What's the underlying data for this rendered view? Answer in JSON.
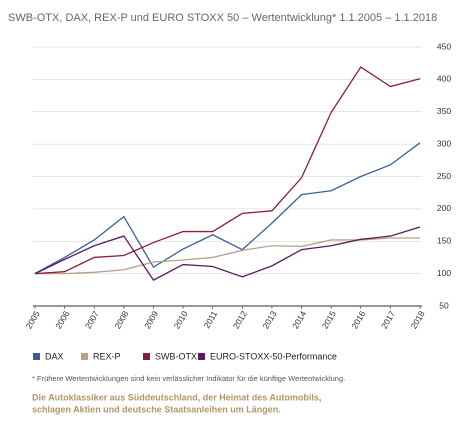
{
  "chart_data": {
    "type": "line",
    "title": "SWB-OTX, DAX, REX-P und EURO STOXX 50 – Wertentwicklung* 1.1.2005 – 1.1.2018",
    "categories": [
      "2005",
      "2006",
      "2007",
      "2008",
      "2009",
      "2010",
      "2011",
      "2012",
      "2013",
      "2014",
      "2015",
      "2016",
      "2017",
      "2018"
    ],
    "series": [
      {
        "name": "DAX",
        "color": "#3b5f9c",
        "values": [
          100,
          125,
          152,
          188,
          110,
          138,
          160,
          137,
          178,
          222,
          228,
          250,
          268,
          302
        ]
      },
      {
        "name": "REX-P",
        "color": "#b9a08a",
        "values": [
          100,
          100,
          102,
          106,
          118,
          121,
          125,
          136,
          143,
          142,
          152,
          152,
          155,
          155
        ]
      },
      {
        "name": "SWB-OTX",
        "color": "#8c1c3c",
        "values": [
          100,
          103,
          125,
          128,
          148,
          165,
          165,
          193,
          197,
          248,
          349,
          419,
          389,
          401
        ]
      },
      {
        "name": "EURO-STOXX-50-Performance",
        "color": "#5b1b5e",
        "values": [
          100,
          122,
          143,
          158,
          90,
          114,
          111,
          95,
          112,
          137,
          143,
          153,
          158,
          172
        ]
      }
    ],
    "ylim": [
      50,
      450
    ],
    "yticks": [
      50,
      100,
      150,
      200,
      250,
      300,
      350,
      400,
      450
    ],
    "grid": true,
    "footnote": "* Frühere Wertentwicklungen sind kein verlässlicher Indikator für die künftige Wertentwicklung.",
    "caption": [
      "Die Autoklassiker aus Süddeutschland, der Heimat des Automobils,",
      "schlagen Aktien und deutsche Staatsanleihen um Längen."
    ]
  }
}
